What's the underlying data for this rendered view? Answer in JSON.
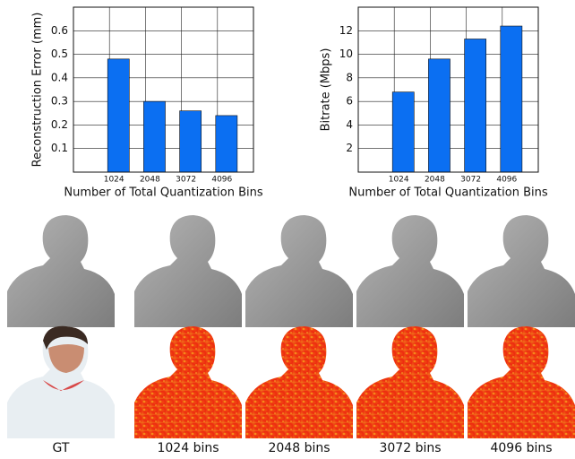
{
  "chart_data": [
    {
      "type": "bar",
      "xlabel": "Number of Total Quantization Bins",
      "ylabel": "Reconstruction Error (mm)",
      "x": [
        1024,
        2048,
        3072,
        4096
      ],
      "values": [
        0.48,
        0.3,
        0.26,
        0.24
      ],
      "color": "#0b6ff2",
      "xlim": [
        0,
        5120
      ],
      "xticks": [
        1024,
        2048,
        3072,
        4096
      ],
      "ylim": [
        0,
        0.7
      ],
      "yticks": [
        0.1,
        0.2,
        0.3,
        0.4,
        0.5,
        0.6
      ],
      "grid": true
    },
    {
      "type": "bar",
      "xlabel": "Number of Total Quantization Bins",
      "ylabel": "Bitrate (Mbps)",
      "x": [
        1024,
        2048,
        3072,
        4096
      ],
      "values": [
        6.8,
        9.6,
        11.3,
        12.4
      ],
      "color": "#0b6ff2",
      "xlim": [
        0,
        5120
      ],
      "xticks": [
        1024,
        2048,
        3072,
        4096
      ],
      "ylim": [
        0,
        14
      ],
      "yticks": [
        2,
        4,
        6,
        8,
        10,
        12
      ],
      "grid": true
    }
  ],
  "captions": [
    "GT",
    "1024 bins",
    "2048 bins",
    "3072 bins",
    "4096 bins"
  ]
}
